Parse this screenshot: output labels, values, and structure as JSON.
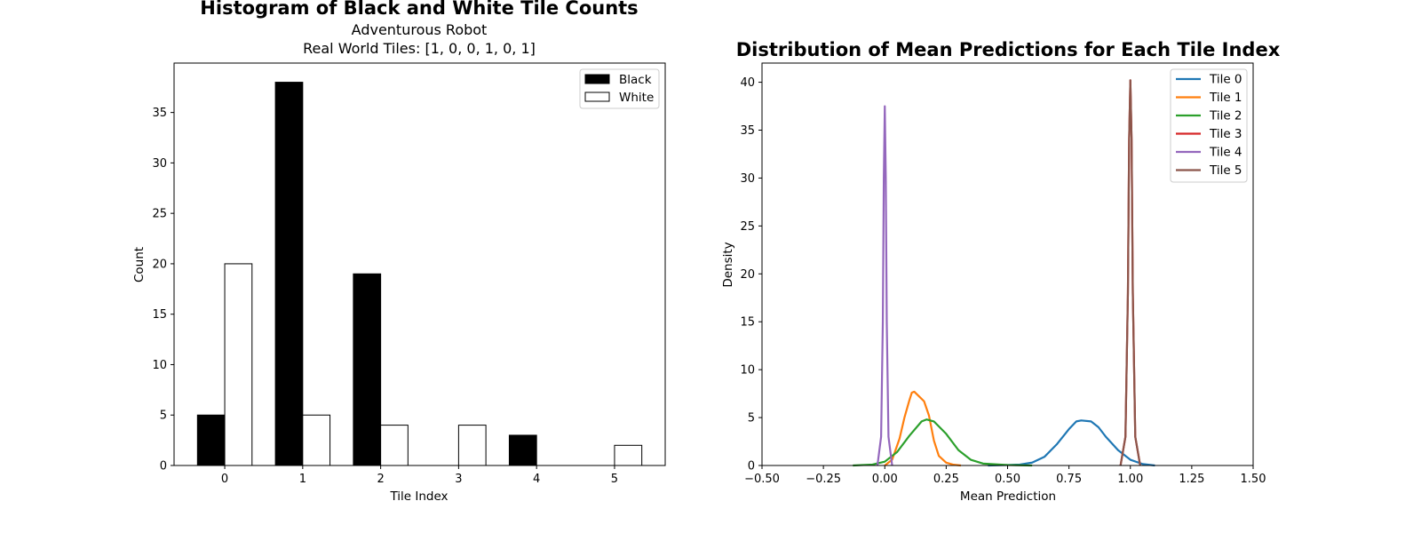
{
  "chart_data": [
    {
      "type": "bar",
      "title": "Histogram of Black and White Tile Counts",
      "subtitle_lines": [
        "Adventurous Robot",
        "Real World Tiles: [1, 0, 0, 1, 0, 1]"
      ],
      "xlabel": "Tile Index",
      "ylabel": "Count",
      "categories": [
        "0",
        "1",
        "2",
        "3",
        "4",
        "5"
      ],
      "xlim": [
        -0.65,
        5.65
      ],
      "ylim": [
        0,
        39.9
      ],
      "yticks": [
        0,
        5,
        10,
        15,
        20,
        25,
        30,
        35
      ],
      "grid": false,
      "legend_position": "top-right",
      "series": [
        {
          "name": "Black",
          "values": [
            5,
            38,
            19,
            0,
            3,
            0
          ],
          "fill": "#000000",
          "stroke": "#000000"
        },
        {
          "name": "White",
          "values": [
            20,
            5,
            4,
            4,
            0,
            2
          ],
          "fill": "#ffffff",
          "stroke": "#000000"
        }
      ]
    },
    {
      "type": "line",
      "title": "Distribution of Mean Predictions for Each Tile Index",
      "xlabel": "Mean Prediction",
      "ylabel": "Density",
      "xlim": [
        -0.5,
        1.5
      ],
      "ylim": [
        0,
        42
      ],
      "xticks": [
        "−0.50",
        "−0.25",
        "0.00",
        "0.25",
        "0.50",
        "0.75",
        "1.00",
        "1.25",
        "1.50"
      ],
      "yticks": [
        0,
        5,
        10,
        15,
        20,
        25,
        30,
        35,
        40
      ],
      "grid": false,
      "legend_position": "top-right",
      "series": [
        {
          "name": "Tile 0",
          "color": "#1f77b4",
          "x": [
            0.42,
            0.5,
            0.55,
            0.6,
            0.65,
            0.7,
            0.75,
            0.78,
            0.8,
            0.84,
            0.87,
            0.9,
            0.95,
            1.0,
            1.05,
            1.1
          ],
          "y": [
            0,
            0.05,
            0.1,
            0.3,
            0.9,
            2.2,
            3.8,
            4.6,
            4.7,
            4.6,
            4.0,
            3.0,
            1.6,
            0.6,
            0.15,
            0
          ]
        },
        {
          "name": "Tile 1",
          "color": "#ff7f0e",
          "x": [
            0.0,
            0.03,
            0.06,
            0.08,
            0.1,
            0.11,
            0.12,
            0.14,
            0.16,
            0.18,
            0.2,
            0.22,
            0.25,
            0.28,
            0.31
          ],
          "y": [
            0,
            0.6,
            2.8,
            5.0,
            6.8,
            7.6,
            7.7,
            7.2,
            6.7,
            5.2,
            2.6,
            1.0,
            0.3,
            0.08,
            0
          ]
        },
        {
          "name": "Tile 2",
          "color": "#2ca02c",
          "x": [
            -0.13,
            -0.05,
            0.0,
            0.05,
            0.1,
            0.15,
            0.17,
            0.2,
            0.25,
            0.3,
            0.35,
            0.4,
            0.5,
            0.6
          ],
          "y": [
            0,
            0.1,
            0.4,
            1.4,
            3.1,
            4.6,
            4.8,
            4.6,
            3.3,
            1.6,
            0.6,
            0.2,
            0.05,
            0
          ]
        },
        {
          "name": "Tile 3",
          "color": "#d62728",
          "x": [
            0.96,
            0.98,
            0.99,
            0.995,
            1.0,
            1.005,
            1.01,
            1.02,
            1.04
          ],
          "y": [
            0,
            3,
            18,
            34,
            40.2,
            34,
            18,
            3,
            0
          ]
        },
        {
          "name": "Tile 4",
          "color": "#9467bd",
          "x": [
            -0.03,
            -0.015,
            -0.008,
            -0.004,
            0.0,
            0.004,
            0.008,
            0.015,
            0.03
          ],
          "y": [
            0,
            3,
            15,
            30,
            37.5,
            30,
            15,
            3,
            0
          ]
        },
        {
          "name": "Tile 5",
          "color": "#8c564b",
          "x": [
            0.96,
            0.98,
            0.99,
            0.995,
            1.0,
            1.005,
            1.01,
            1.02,
            1.04
          ],
          "y": [
            0,
            3,
            18,
            34,
            40.2,
            34,
            18,
            3,
            0
          ]
        }
      ]
    }
  ]
}
